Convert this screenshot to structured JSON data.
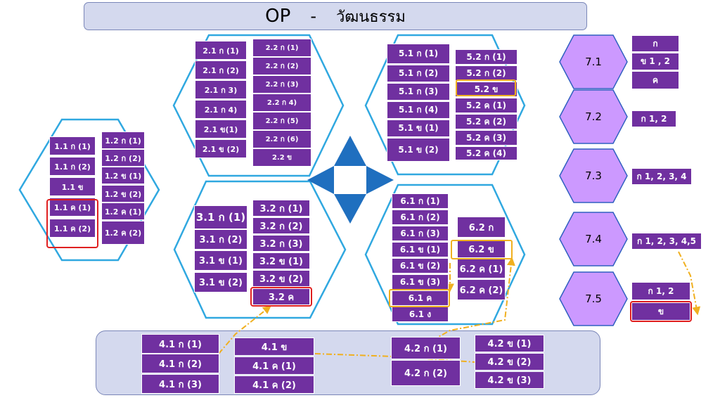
{
  "title": {
    "main": "OP",
    "dash": "-",
    "sub": "วัฒนธรรม"
  },
  "colors": {
    "cell": "#7030a0",
    "hex_outline": "#30a8e0",
    "hex7_fill": "#cc99ff",
    "hex7_outline": "#3060c0",
    "arrow": "#1f6fbf",
    "highlight_red": "#e02020",
    "highlight_amber": "#f0b020"
  },
  "group1": {
    "col1": [
      "1.1 ก (1)",
      "1.1 ก (2)",
      "1.1 ข",
      "1.1 ค (1)",
      "1.1 ค (2)"
    ],
    "col2": [
      "1.2 ก (1)",
      "1.2 ก (2)",
      "1.2 ข (1)",
      "1.2 ข (2)",
      "1.2 ค (1)",
      "1.2 ค (2)"
    ]
  },
  "group2": {
    "col1": [
      "2.1 ก (1)",
      "2.1 ก (2)",
      "2.1 ก 3)",
      "2.1 ก 4)",
      "2.1 ข(1)",
      "2.1 ข (2)"
    ],
    "col2": [
      "2.2 ก (1)",
      "2.2 ก (2)",
      "2.2 ก (3)",
      "2.2 ก 4)",
      "2.2 ก (5)",
      "2.2 ก (6)",
      "2.2 ข"
    ]
  },
  "group3": {
    "col1": [
      "3.1 ก (1)",
      "3.1 ก (2)",
      "3.1 ข (1)",
      "3.1 ข (2)"
    ],
    "col2": [
      "3.2 ก (1)",
      "3.2 ก (2)",
      "3.2 ก (3)",
      "3.2 ข (1)",
      "3.2 ข (2)",
      "3.2 ค"
    ]
  },
  "group4": {
    "col1": [
      "4.1 ก (1)",
      "4.1 ก (2)",
      "4.1 ก (3)"
    ],
    "col2": [
      "4.1 ข",
      "4.1 ค (1)",
      "4.1 ค (2)"
    ],
    "col3": [
      "4.2 ก (1)",
      "4.2 ก (2)"
    ],
    "col4": [
      "4.2 ข (1)",
      "4.2 ข (2)",
      "4.2 ข (3)"
    ]
  },
  "group5": {
    "col1": [
      "5.1 ก (1)",
      "5.1 ก (2)",
      "5.1 ก (3)",
      "5.1 ก (4)",
      "5.1 ข (1)",
      "5.1 ข (2)"
    ],
    "col2": [
      "5.2 ก (1)",
      "5.2 ก (2)",
      "5.2 ข",
      "5.2 ค (1)",
      "5.2 ค (2)",
      "5.2 ค (3)",
      "5.2 ค (4)"
    ]
  },
  "group6": {
    "col1": [
      "6.1 ก (1)",
      "6.1 ก (2)",
      "6.1 ก (3)",
      "6.1 ข (1)",
      "6.1 ข (2)",
      "6.1 ข (3)",
      "6.1 ค",
      "6.1 ง"
    ],
    "col2": [
      "6.2 ก",
      "6.2 ข",
      "6.2 ค (1)",
      "6.2 ค (2)"
    ]
  },
  "group7": [
    {
      "label": "7.1",
      "items": [
        "ก",
        "ข 1 , 2",
        "ค"
      ]
    },
    {
      "label": "7.2",
      "items": [
        "ก 1, 2"
      ]
    },
    {
      "label": "7.3",
      "items": [
        "ก 1, 2, 3, 4"
      ]
    },
    {
      "label": "7.4",
      "items": [
        "ก 1, 2, 3, 4,5"
      ]
    },
    {
      "label": "7.5",
      "items": [
        "ก 1, 2",
        "ข"
      ]
    }
  ]
}
